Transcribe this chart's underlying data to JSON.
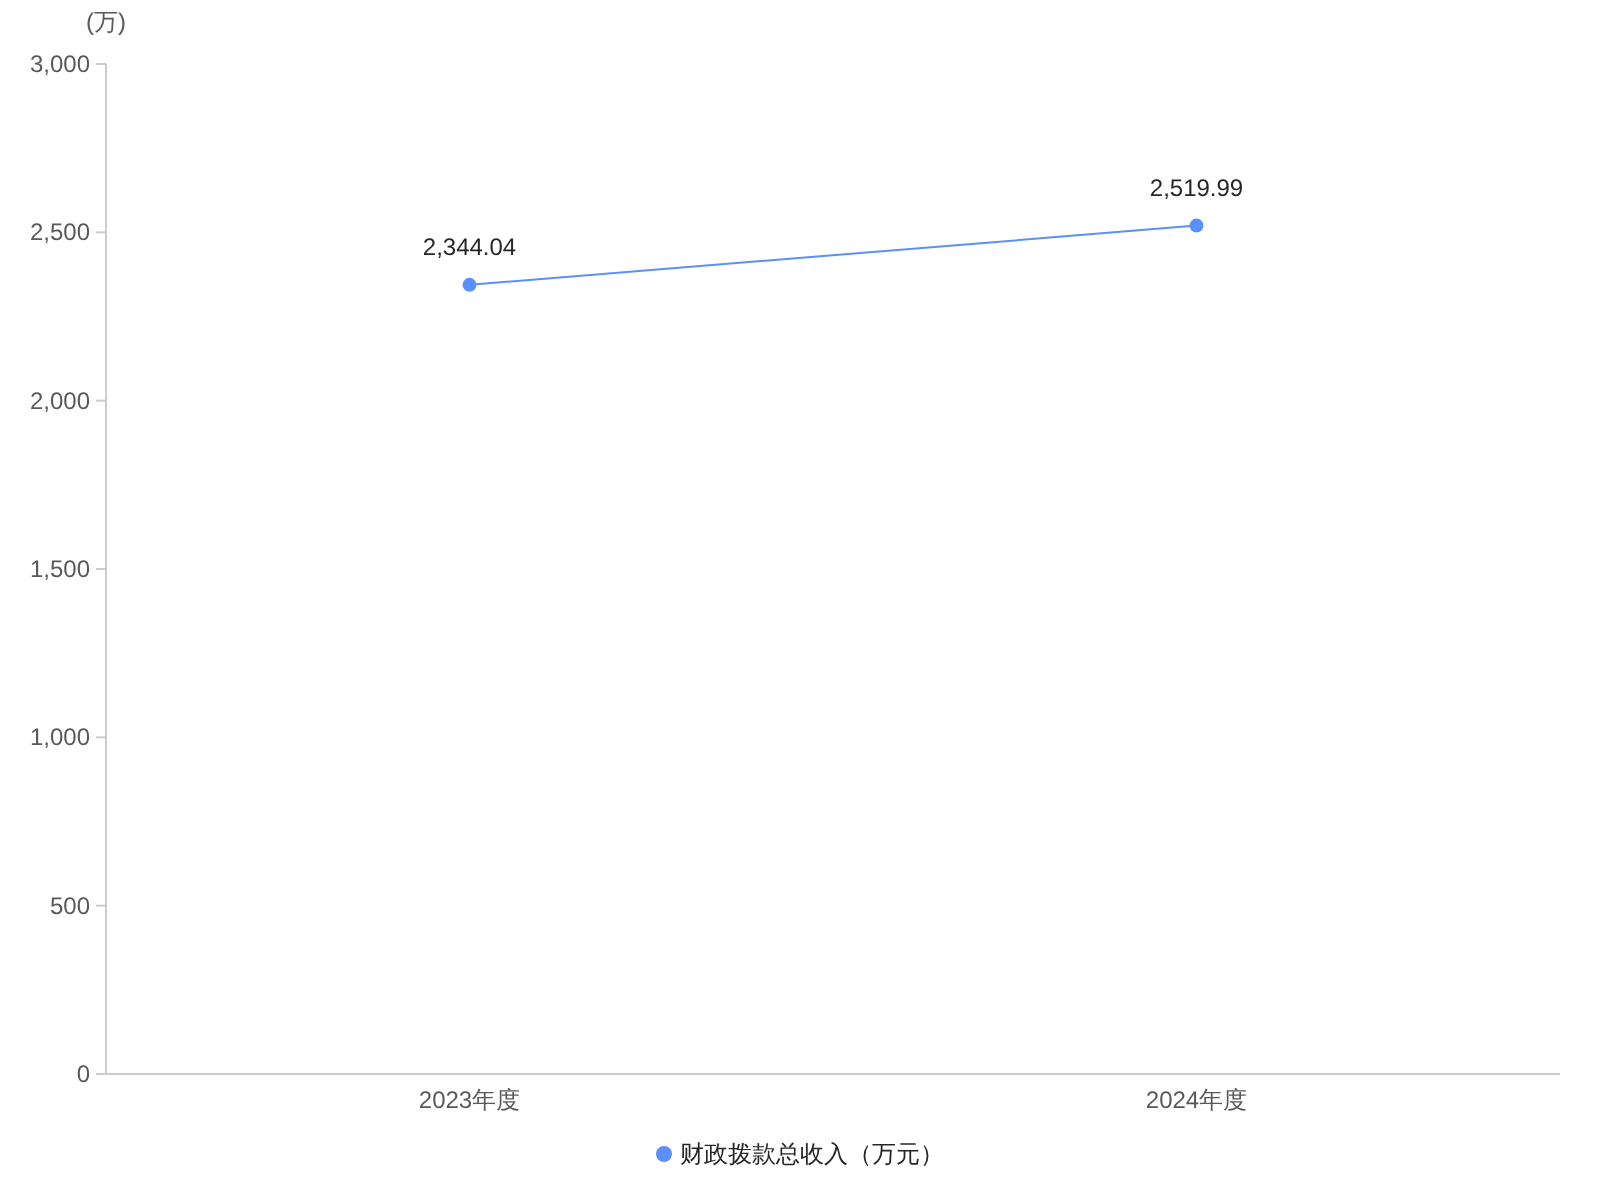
{
  "chart_data": {
    "type": "line",
    "ylabel": "(万)",
    "categories": [
      "2023年度",
      "2024年度"
    ],
    "series": [
      {
        "name": "财政拨款总收入（万元）",
        "color": "#5b8ff9",
        "values": [
          2344.04,
          2519.99
        ],
        "value_labels": [
          "2,344.04",
          "2,519.99"
        ]
      }
    ],
    "ylim": [
      0,
      3000
    ],
    "yticks": [
      0,
      500,
      {
        "value": 1000,
        "label": "1,000"
      },
      {
        "value": 1500,
        "label": "1,500"
      },
      {
        "value": 2000,
        "label": "2,000"
      },
      {
        "value": 2500,
        "label": "2,500"
      },
      {
        "value": 3000,
        "label": "3,000"
      }
    ],
    "legend": "bottom",
    "marker": "circle",
    "line_style": "solid"
  }
}
